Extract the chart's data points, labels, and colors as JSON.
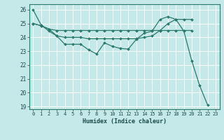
{
  "xlabel": "Humidex (Indice chaleur)",
  "ylabel": "",
  "bg_color": "#c5e8e8",
  "line_color": "#2a7a6a",
  "grid_color": "#ffffff",
  "ylim": [
    18.8,
    26.4
  ],
  "xlim": [
    -0.5,
    23.5
  ],
  "yticks": [
    19,
    20,
    21,
    22,
    23,
    24,
    25,
    26
  ],
  "xticks": [
    0,
    1,
    2,
    3,
    4,
    5,
    6,
    7,
    8,
    9,
    10,
    11,
    12,
    13,
    14,
    15,
    16,
    17,
    18,
    19,
    20,
    21,
    22,
    23
  ],
  "lines": [
    {
      "x": [
        0,
        1,
        2,
        3,
        4,
        5,
        6,
        7,
        8,
        9,
        10,
        11,
        12,
        13,
        14,
        15,
        16,
        17,
        18,
        19,
        20,
        21,
        22
      ],
      "y": [
        26.0,
        24.9,
        24.45,
        24.1,
        23.5,
        23.5,
        23.5,
        23.1,
        22.8,
        23.6,
        23.35,
        23.2,
        23.15,
        23.85,
        24.3,
        24.45,
        25.3,
        25.5,
        25.3,
        24.45,
        22.3,
        20.5,
        19.1
      ]
    },
    {
      "x": [
        0,
        1,
        2,
        3,
        4,
        5,
        6,
        7,
        8,
        9,
        10,
        11,
        12,
        13,
        14,
        15,
        16,
        17,
        18,
        19,
        20
      ],
      "y": [
        25.0,
        24.85,
        24.6,
        24.5,
        24.5,
        24.5,
        24.5,
        24.5,
        24.5,
        24.5,
        24.5,
        24.5,
        24.5,
        24.5,
        24.5,
        24.5,
        24.5,
        24.5,
        24.5,
        24.5,
        24.5
      ]
    },
    {
      "x": [
        0,
        1,
        2,
        3,
        4,
        5,
        6,
        7,
        8,
        9,
        10,
        11,
        12,
        13,
        14,
        15,
        16,
        17,
        18,
        19,
        20
      ],
      "y": [
        25.0,
        24.85,
        24.6,
        24.1,
        24.0,
        24.0,
        24.0,
        23.9,
        23.9,
        23.9,
        23.9,
        23.9,
        23.9,
        23.9,
        24.0,
        24.1,
        24.5,
        25.0,
        25.3,
        25.3,
        25.3
      ]
    }
  ]
}
